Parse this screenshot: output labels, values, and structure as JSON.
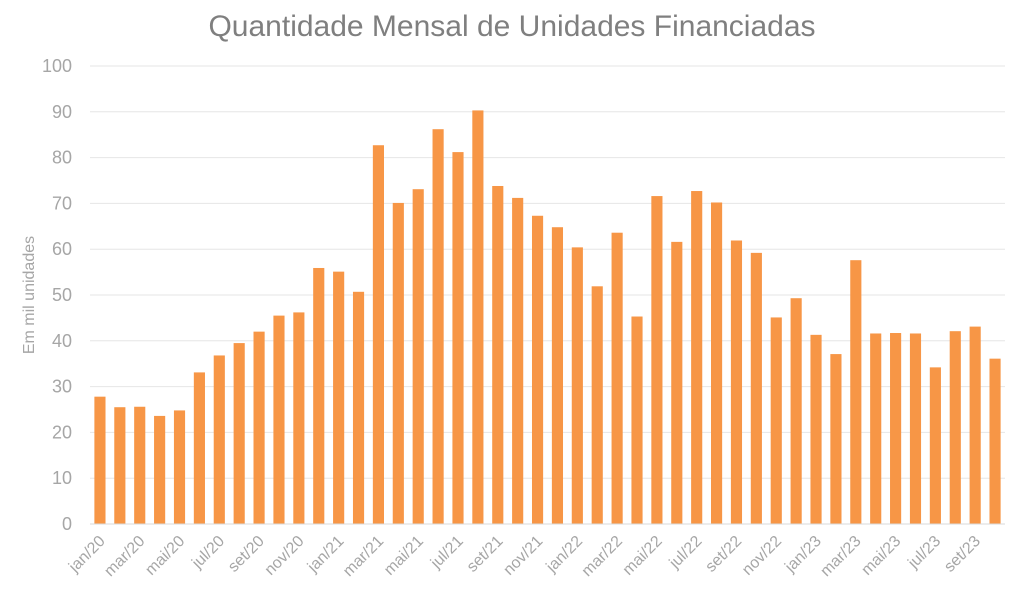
{
  "chart_data": {
    "type": "bar",
    "title": "Quantidade Mensal de Unidades Financiadas",
    "xlabel": "",
    "ylabel": "Em mil unidades",
    "ylim": [
      0,
      100
    ],
    "yticks": [
      0,
      10,
      20,
      30,
      40,
      50,
      60,
      70,
      80,
      90,
      100
    ],
    "grid": true,
    "bar_color": "#f79646",
    "categories": [
      "jan/20",
      "fev/20",
      "mar/20",
      "abr/20",
      "mai/20",
      "jun/20",
      "jul/20",
      "ago/20",
      "set/20",
      "out/20",
      "nov/20",
      "dez/20",
      "jan/21",
      "fev/21",
      "mar/21",
      "abr/21",
      "mai/21",
      "jun/21",
      "jul/21",
      "ago/21",
      "set/21",
      "out/21",
      "nov/21",
      "dez/21",
      "jan/22",
      "fev/22",
      "mar/22",
      "abr/22",
      "mai/22",
      "jun/22",
      "jul/22",
      "ago/22",
      "set/22",
      "out/22",
      "nov/22",
      "dez/22",
      "jan/23",
      "fev/23",
      "mar/23",
      "abr/23",
      "mai/23",
      "jun/23",
      "jul/23",
      "ago/23",
      "set/23",
      "out/23"
    ],
    "values": [
      27.8,
      25.5,
      25.6,
      23.6,
      24.8,
      33.1,
      36.8,
      39.5,
      42.0,
      45.5,
      46.2,
      55.9,
      55.1,
      50.7,
      82.7,
      70.1,
      73.1,
      86.2,
      81.2,
      90.3,
      73.8,
      71.2,
      67.3,
      64.8,
      60.4,
      51.9,
      63.6,
      45.3,
      71.6,
      61.6,
      72.7,
      70.2,
      61.9,
      59.2,
      45.1,
      49.3,
      41.3,
      37.1,
      57.6,
      41.6,
      41.7,
      41.6,
      34.2,
      42.1,
      43.1,
      36.1
    ],
    "xtick_labels": [
      "jan/20",
      "mar/20",
      "mai/20",
      "jul/20",
      "set/20",
      "nov/20",
      "jan/21",
      "mar/21",
      "mai/21",
      "jul/21",
      "set/21",
      "nov/21",
      "jan/22",
      "mar/22",
      "mai/22",
      "jul/22",
      "set/22",
      "nov/22",
      "jan/23",
      "mar/23",
      "mai/23",
      "jul/23",
      "set/23"
    ]
  }
}
